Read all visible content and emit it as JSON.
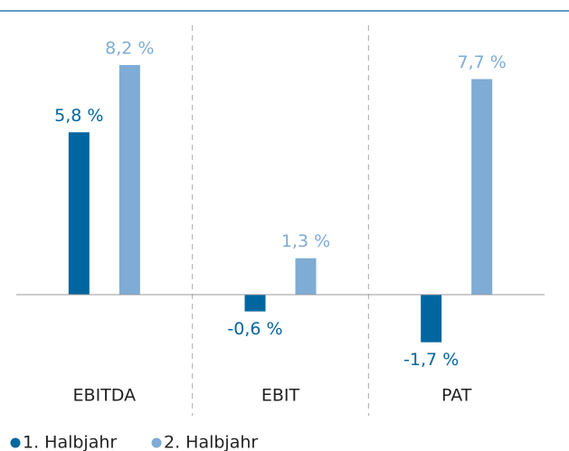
{
  "chart_data": {
    "type": "bar",
    "categories": [
      "EBITDA",
      "EBIT",
      "PAT"
    ],
    "series": [
      {
        "name": "1. Halbjahr",
        "color": "#00669f",
        "values": [
          5.8,
          -0.6,
          -1.7
        ],
        "value_labels": [
          "5,8 %",
          "-0,6 %",
          "-1,7 %"
        ]
      },
      {
        "name": "2. Halbjahr",
        "color": "#7eacd5",
        "values": [
          8.2,
          1.3,
          7.7
        ],
        "value_labels": [
          "8,2 %",
          "1,3 %",
          "7,7 %"
        ]
      }
    ],
    "legend": "bottom-left"
  }
}
